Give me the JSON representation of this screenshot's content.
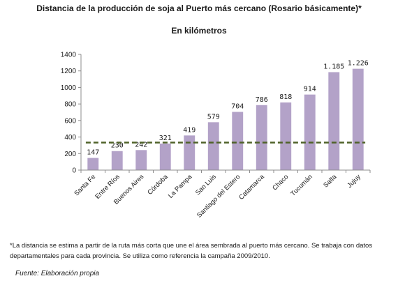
{
  "chart_data": {
    "type": "bar",
    "title": "Distancia de la producción de soja al Puerto más cercano (Rosario básicamente)*",
    "subtitle": "En kilómetros",
    "categories": [
      "Santa Fe",
      "Entre Ríos",
      "Buenos Aires",
      "Córdoba",
      "La Pampa",
      "San Luis",
      "Santiago del Estero",
      "Catamarca",
      "Chaco",
      "Tucumán",
      "Salta",
      "Jujuy"
    ],
    "values": [
      147,
      230,
      242,
      321,
      419,
      579,
      704,
      786,
      818,
      914,
      1185,
      1226
    ],
    "value_labels": [
      "147",
      "230",
      "242",
      "321",
      "419",
      "579",
      "704",
      "786",
      "818",
      "914",
      "1.185",
      "1.226"
    ],
    "reference_line": 333,
    "ylim": [
      0,
      1400
    ],
    "yticks": [
      0,
      200,
      400,
      600,
      800,
      1000,
      1200,
      1400
    ],
    "ytick_labels": [
      "0",
      "200",
      "400",
      "600",
      "800",
      "1000",
      "1200",
      "1400"
    ],
    "grid": false,
    "colors": {
      "bar": "#b3a2c8",
      "reference_line": "#4f6228",
      "axis": "#8c8c8c"
    }
  },
  "footnote": {
    "line1": "*La distancia se estima a partir de la ruta más corta que une el área sembrada al puerto más cercano. Se trabaja con datos",
    "line2": "departamentales  para cada provincia. Se utiliza como referencia la campaña 2009/2010."
  },
  "source": "Fuente: Elaboración propia"
}
